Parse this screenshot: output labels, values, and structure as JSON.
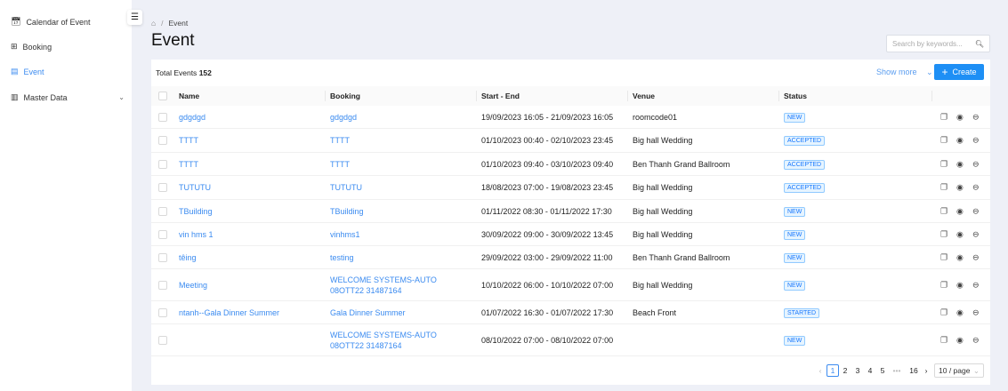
{
  "sidebar": {
    "items": [
      {
        "label": "Calendar of Event",
        "icon": "calendar-icon"
      },
      {
        "label": "Booking",
        "icon": "grid-icon"
      },
      {
        "label": "Event",
        "icon": "event-icon",
        "active": true
      },
      {
        "label": "Master Data",
        "icon": "database-icon",
        "expandable": true
      }
    ]
  },
  "breadcrumb": {
    "sep": "/",
    "current": "Event"
  },
  "page": {
    "title": "Event"
  },
  "search": {
    "placeholder": "Search by keywords..."
  },
  "toolbar": {
    "total_label": "Total Events",
    "total": "152",
    "show_more": "Show more",
    "create": "Create"
  },
  "table": {
    "headers": [
      "Name",
      "Booking",
      "Start - End",
      "Venue",
      "Status"
    ],
    "rows": [
      {
        "name": "gdgdgd",
        "booking": "gdgdgd",
        "start_end": "19/09/2023 16:05 - 21/09/2023 16:05",
        "venue": "roomcode01",
        "status": "NEW"
      },
      {
        "name": "TTTT",
        "booking": "TTTT",
        "start_end": "01/10/2023 00:40 - 02/10/2023 23:45",
        "venue": "Big hall Wedding",
        "status": "ACCEPTED"
      },
      {
        "name": "TTTT",
        "booking": "TTTT",
        "start_end": "01/10/2023 09:40 - 03/10/2023 09:40",
        "venue": "Ben Thanh Grand Ballroom",
        "status": "ACCEPTED"
      },
      {
        "name": "TUTUTU",
        "booking": "TUTUTU",
        "start_end": "18/08/2023 07:00 - 19/08/2023 23:45",
        "venue": "Big hall Wedding",
        "status": "ACCEPTED"
      },
      {
        "name": "TBuilding",
        "booking": "TBuilding",
        "start_end": "01/11/2022 08:30 - 01/11/2022 17:30",
        "venue": "Big hall Wedding",
        "status": "NEW"
      },
      {
        "name": "vin hms 1",
        "booking": "vinhms1",
        "start_end": "30/09/2022 09:00 - 30/09/2022 13:45",
        "venue": "Big hall Wedding",
        "status": "NEW"
      },
      {
        "name": "têing",
        "booking": "testing",
        "start_end": "29/09/2022 03:00 - 29/09/2022 11:00",
        "venue": "Ben Thanh Grand Ballroom",
        "status": "NEW"
      },
      {
        "name": "Meeting",
        "booking": "WELCOME SYSTEMS-AUTO 08OTT22 31487164",
        "start_end": "10/10/2022 06:00 - 10/10/2022 07:00",
        "venue": "Big hall Wedding",
        "status": "NEW"
      },
      {
        "name": "ntanh--Gala Dinner Summer",
        "booking": "Gala Dinner Summer",
        "start_end": "01/07/2022 16:30 - 01/07/2022 17:30",
        "venue": "Beach Front",
        "status": "STARTED"
      },
      {
        "name": "",
        "booking": "WELCOME SYSTEMS-AUTO 08OTT22 31487164",
        "start_end": "08/10/2022 07:00 - 08/10/2022 07:00",
        "venue": "",
        "status": "NEW"
      }
    ]
  },
  "pagination": {
    "pages": [
      "1",
      "2",
      "3",
      "4",
      "5"
    ],
    "ellipsis": "•••",
    "last": "16",
    "current": "1",
    "page_size": "10 / page"
  },
  "colors": {
    "accent": "#1e8ff5",
    "link": "#3b8bf0",
    "background": "#eef0f7"
  }
}
